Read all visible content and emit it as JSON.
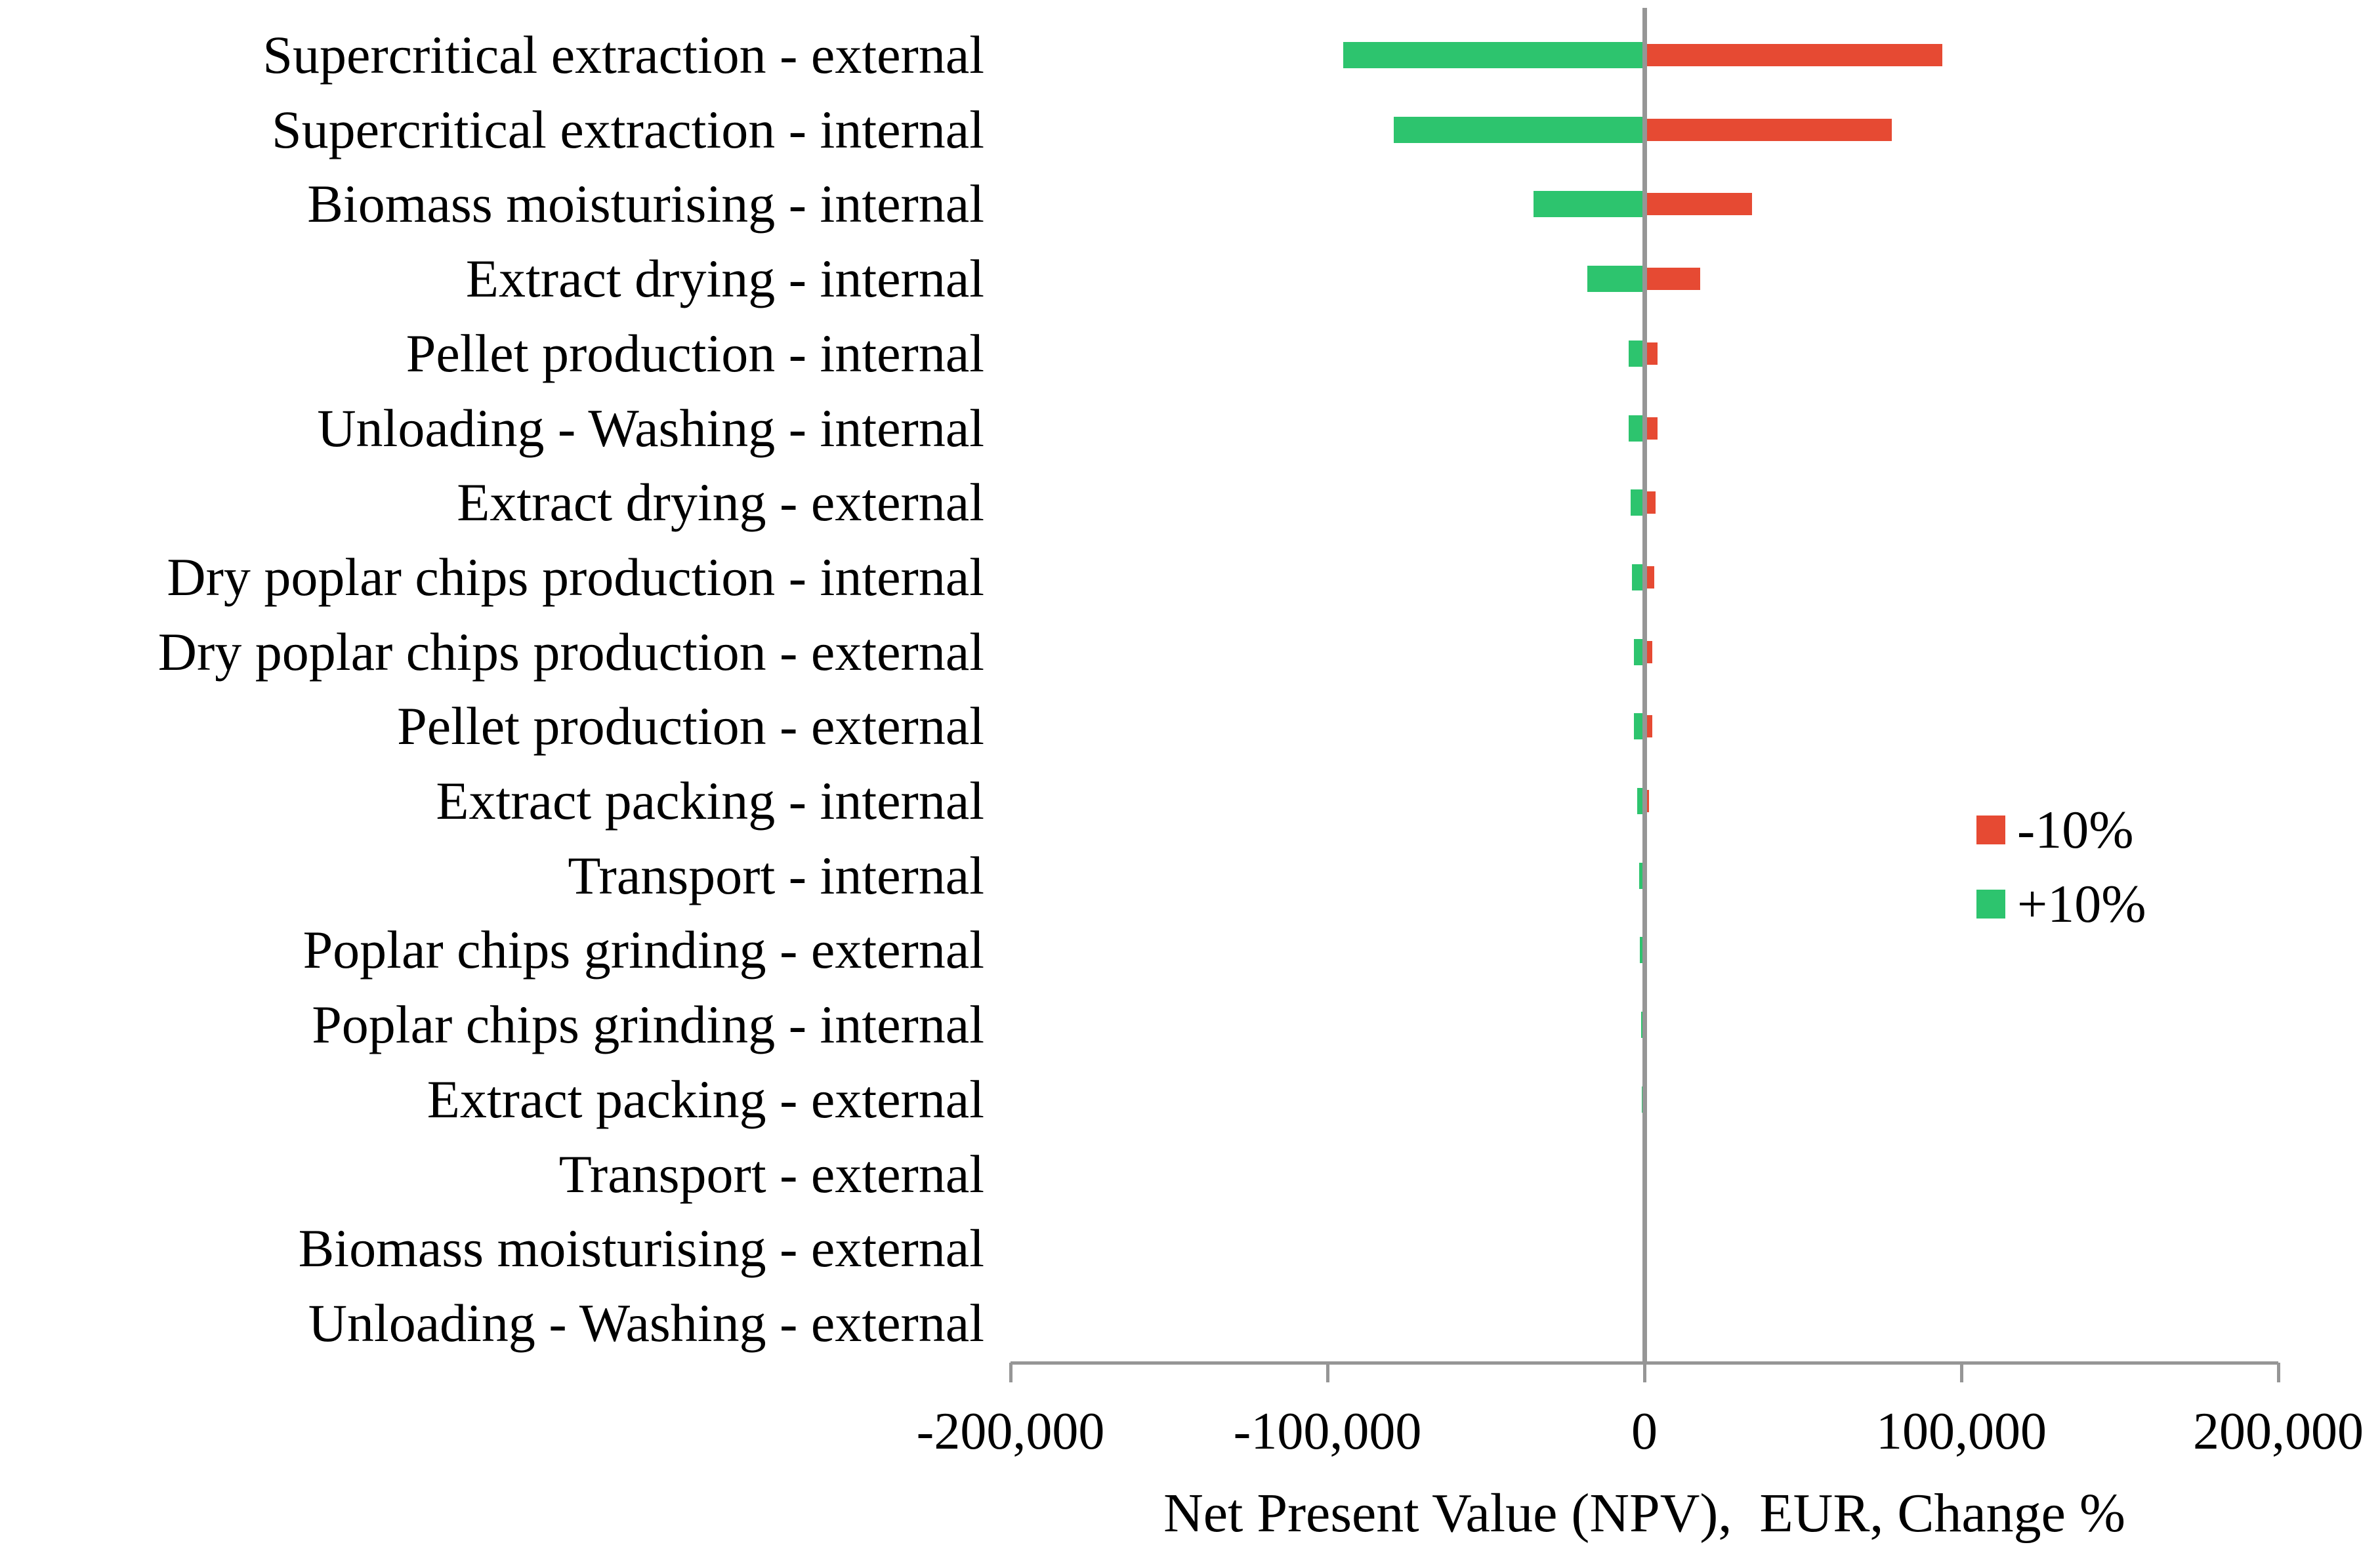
{
  "chart_data": {
    "type": "bar",
    "orientation": "horizontal",
    "title": "",
    "xlabel": "Net Present Value (NPV),  EUR, Change %",
    "ylabel": "",
    "xlim": [
      -200000,
      200000
    ],
    "x_ticks": [
      "-200,000",
      "-100,000",
      "0",
      "100,000",
      "200,000"
    ],
    "x_tick_values": [
      -200000,
      -100000,
      0,
      100000,
      200000
    ],
    "grid": false,
    "categories": [
      "Supercritical extraction - external",
      "Supercritical extraction - internal",
      "Biomass moisturising - internal",
      "Extract drying - internal",
      "Pellet production - internal",
      "Unloading - Washing - internal",
      "Extract drying - external",
      "Dry poplar chips production - internal",
      "Dry poplar chips production - external",
      "Pellet production - external",
      "Extract packing - internal",
      "Transport - internal",
      "Poplar chips grinding - external",
      "Poplar chips grinding - internal",
      "Extract packing - external",
      "Transport - external",
      "Biomass moisturising - external",
      "Unloading - Washing - external"
    ],
    "series": [
      {
        "name": "-10%",
        "color": "#e64a33",
        "values": [
          94000,
          78000,
          34000,
          17500,
          4200,
          4100,
          3500,
          3100,
          2400,
          2400,
          1500,
          800,
          700,
          500,
          300,
          250,
          100,
          80
        ]
      },
      {
        "name": "+10%",
        "color": "#2dc46e",
        "values": [
          -95000,
          -79000,
          -35000,
          -18000,
          -5000,
          -5000,
          -4400,
          -3900,
          -3400,
          -3300,
          -2200,
          -1600,
          -1500,
          -1100,
          -800,
          -700,
          -150,
          -100
        ]
      }
    ],
    "legend": {
      "position": "right-middle",
      "entries": [
        {
          "label": "-10%",
          "color": "#e64a33"
        },
        {
          "label": "+10%",
          "color": "#2dc46e"
        }
      ]
    }
  },
  "colors": {
    "minus10_bar": "#e64a33",
    "plus10_bar": "#2dc46e",
    "axis_gray": "#969696",
    "text": "#000000",
    "background": "#ffffff"
  }
}
